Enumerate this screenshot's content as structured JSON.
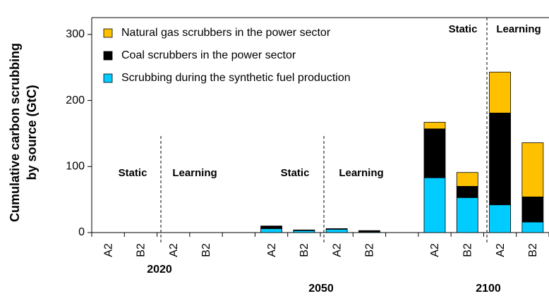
{
  "chart_data": {
    "type": "bar",
    "stacked": true,
    "ylabel": [
      "Cumulative carbon scrubbing",
      "by source (GtC)"
    ],
    "categories": [
      "A2",
      "B2",
      "A2",
      "B2",
      null,
      "A2",
      "B2",
      "A2",
      "B2",
      null,
      "A2",
      "B2",
      "A2",
      "B2"
    ],
    "series": [
      {
        "name": "Natural gas scrubbers in the power sector",
        "color": "#ffc000",
        "values": [
          0,
          0,
          0,
          0,
          null,
          0,
          0,
          0,
          0,
          null,
          10,
          21,
          62,
          82
        ]
      },
      {
        "name": "Coal scrubbers in the power sector",
        "color": "#000000",
        "values": [
          0,
          0,
          0,
          0,
          null,
          4,
          1,
          1,
          2,
          null,
          74,
          17,
          139,
          38
        ]
      },
      {
        "name": "Scrubbing during the synthetic fuel production",
        "color": "#00ccff",
        "values": [
          0,
          0,
          0,
          0,
          null,
          6,
          3,
          5,
          1,
          null,
          83,
          53,
          42,
          16
        ]
      }
    ],
    "ylim": [
      0,
      325
    ],
    "yticks": [
      0,
      100,
      200,
      300
    ],
    "annotations": [
      "Static",
      "Learning",
      "Static",
      "Learning",
      "Static",
      "Learning"
    ],
    "years": [
      "2020",
      "2050",
      "2100"
    ],
    "legend": "upper left"
  }
}
